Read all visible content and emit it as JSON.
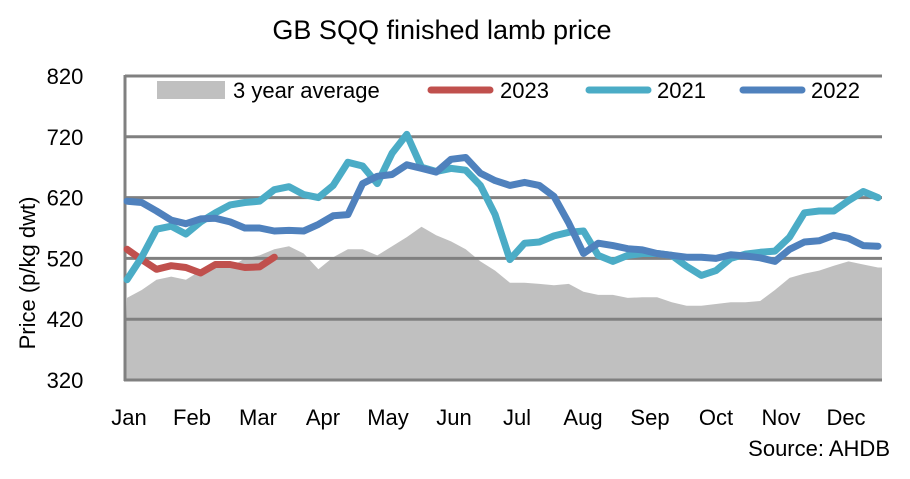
{
  "chart_data": {
    "type": "line",
    "title": "GB SQQ finished lamb price",
    "xlabel": "",
    "ylabel": "Price (p/kg dwt)",
    "ylim": [
      320,
      820
    ],
    "yticks": [
      320,
      420,
      520,
      620,
      720,
      820
    ],
    "ytick_labels": [
      "320",
      "420",
      "520",
      "620",
      "720",
      "820"
    ],
    "x_unit": "week of year",
    "xlim": [
      1,
      52
    ],
    "categories": [
      "Jan",
      "Feb",
      "Mar",
      "Apr",
      "May",
      "Jun",
      "Jul",
      "Aug",
      "Sep",
      "Oct",
      "Nov",
      "Dec"
    ],
    "grid": true,
    "legend": "top",
    "source": "Source: AHDB",
    "series": [
      {
        "name": "3 year average",
        "kind": "area",
        "color": "#c0c0c0",
        "values": [
          455,
          468,
          485,
          490,
          485,
          500,
          512,
          505,
          520,
          525,
          535,
          540,
          528,
          502,
          522,
          535,
          535,
          525,
          540,
          555,
          572,
          558,
          548,
          535,
          515,
          500,
          480,
          480,
          478,
          476,
          478,
          465,
          460,
          460,
          455,
          456,
          456,
          448,
          442,
          442,
          445,
          448,
          448,
          450,
          468,
          488,
          495,
          500,
          508,
          515,
          510,
          505
        ]
      },
      {
        "name": "2023",
        "kind": "line",
        "color": "#c0504d",
        "values": [
          535,
          518,
          502,
          508,
          505,
          496,
          510,
          510,
          505,
          506,
          522
        ]
      },
      {
        "name": "2021",
        "kind": "line",
        "color": "#4bacc6",
        "values": [
          485,
          522,
          568,
          573,
          560,
          580,
          595,
          608,
          612,
          614,
          633,
          638,
          625,
          620,
          640,
          678,
          672,
          643,
          693,
          724,
          670,
          663,
          668,
          665,
          640,
          592,
          518,
          545,
          547,
          557,
          563,
          565,
          525,
          515,
          525,
          528,
          528,
          525,
          507,
          492,
          500,
          520,
          527,
          530,
          532,
          555,
          595,
          598,
          598,
          615,
          630,
          620
        ]
      },
      {
        "name": "2022",
        "kind": "line",
        "color": "#4f81bd",
        "values": [
          614,
          612,
          598,
          583,
          577,
          585,
          586,
          580,
          570,
          570,
          565,
          566,
          565,
          576,
          590,
          592,
          643,
          655,
          658,
          674,
          668,
          662,
          683,
          686,
          660,
          648,
          640,
          645,
          640,
          622,
          578,
          528,
          545,
          541,
          536,
          534,
          528,
          525,
          522,
          522,
          520,
          526,
          524,
          521,
          515,
          535,
          547,
          549,
          558,
          553,
          541,
          540
        ]
      }
    ]
  }
}
